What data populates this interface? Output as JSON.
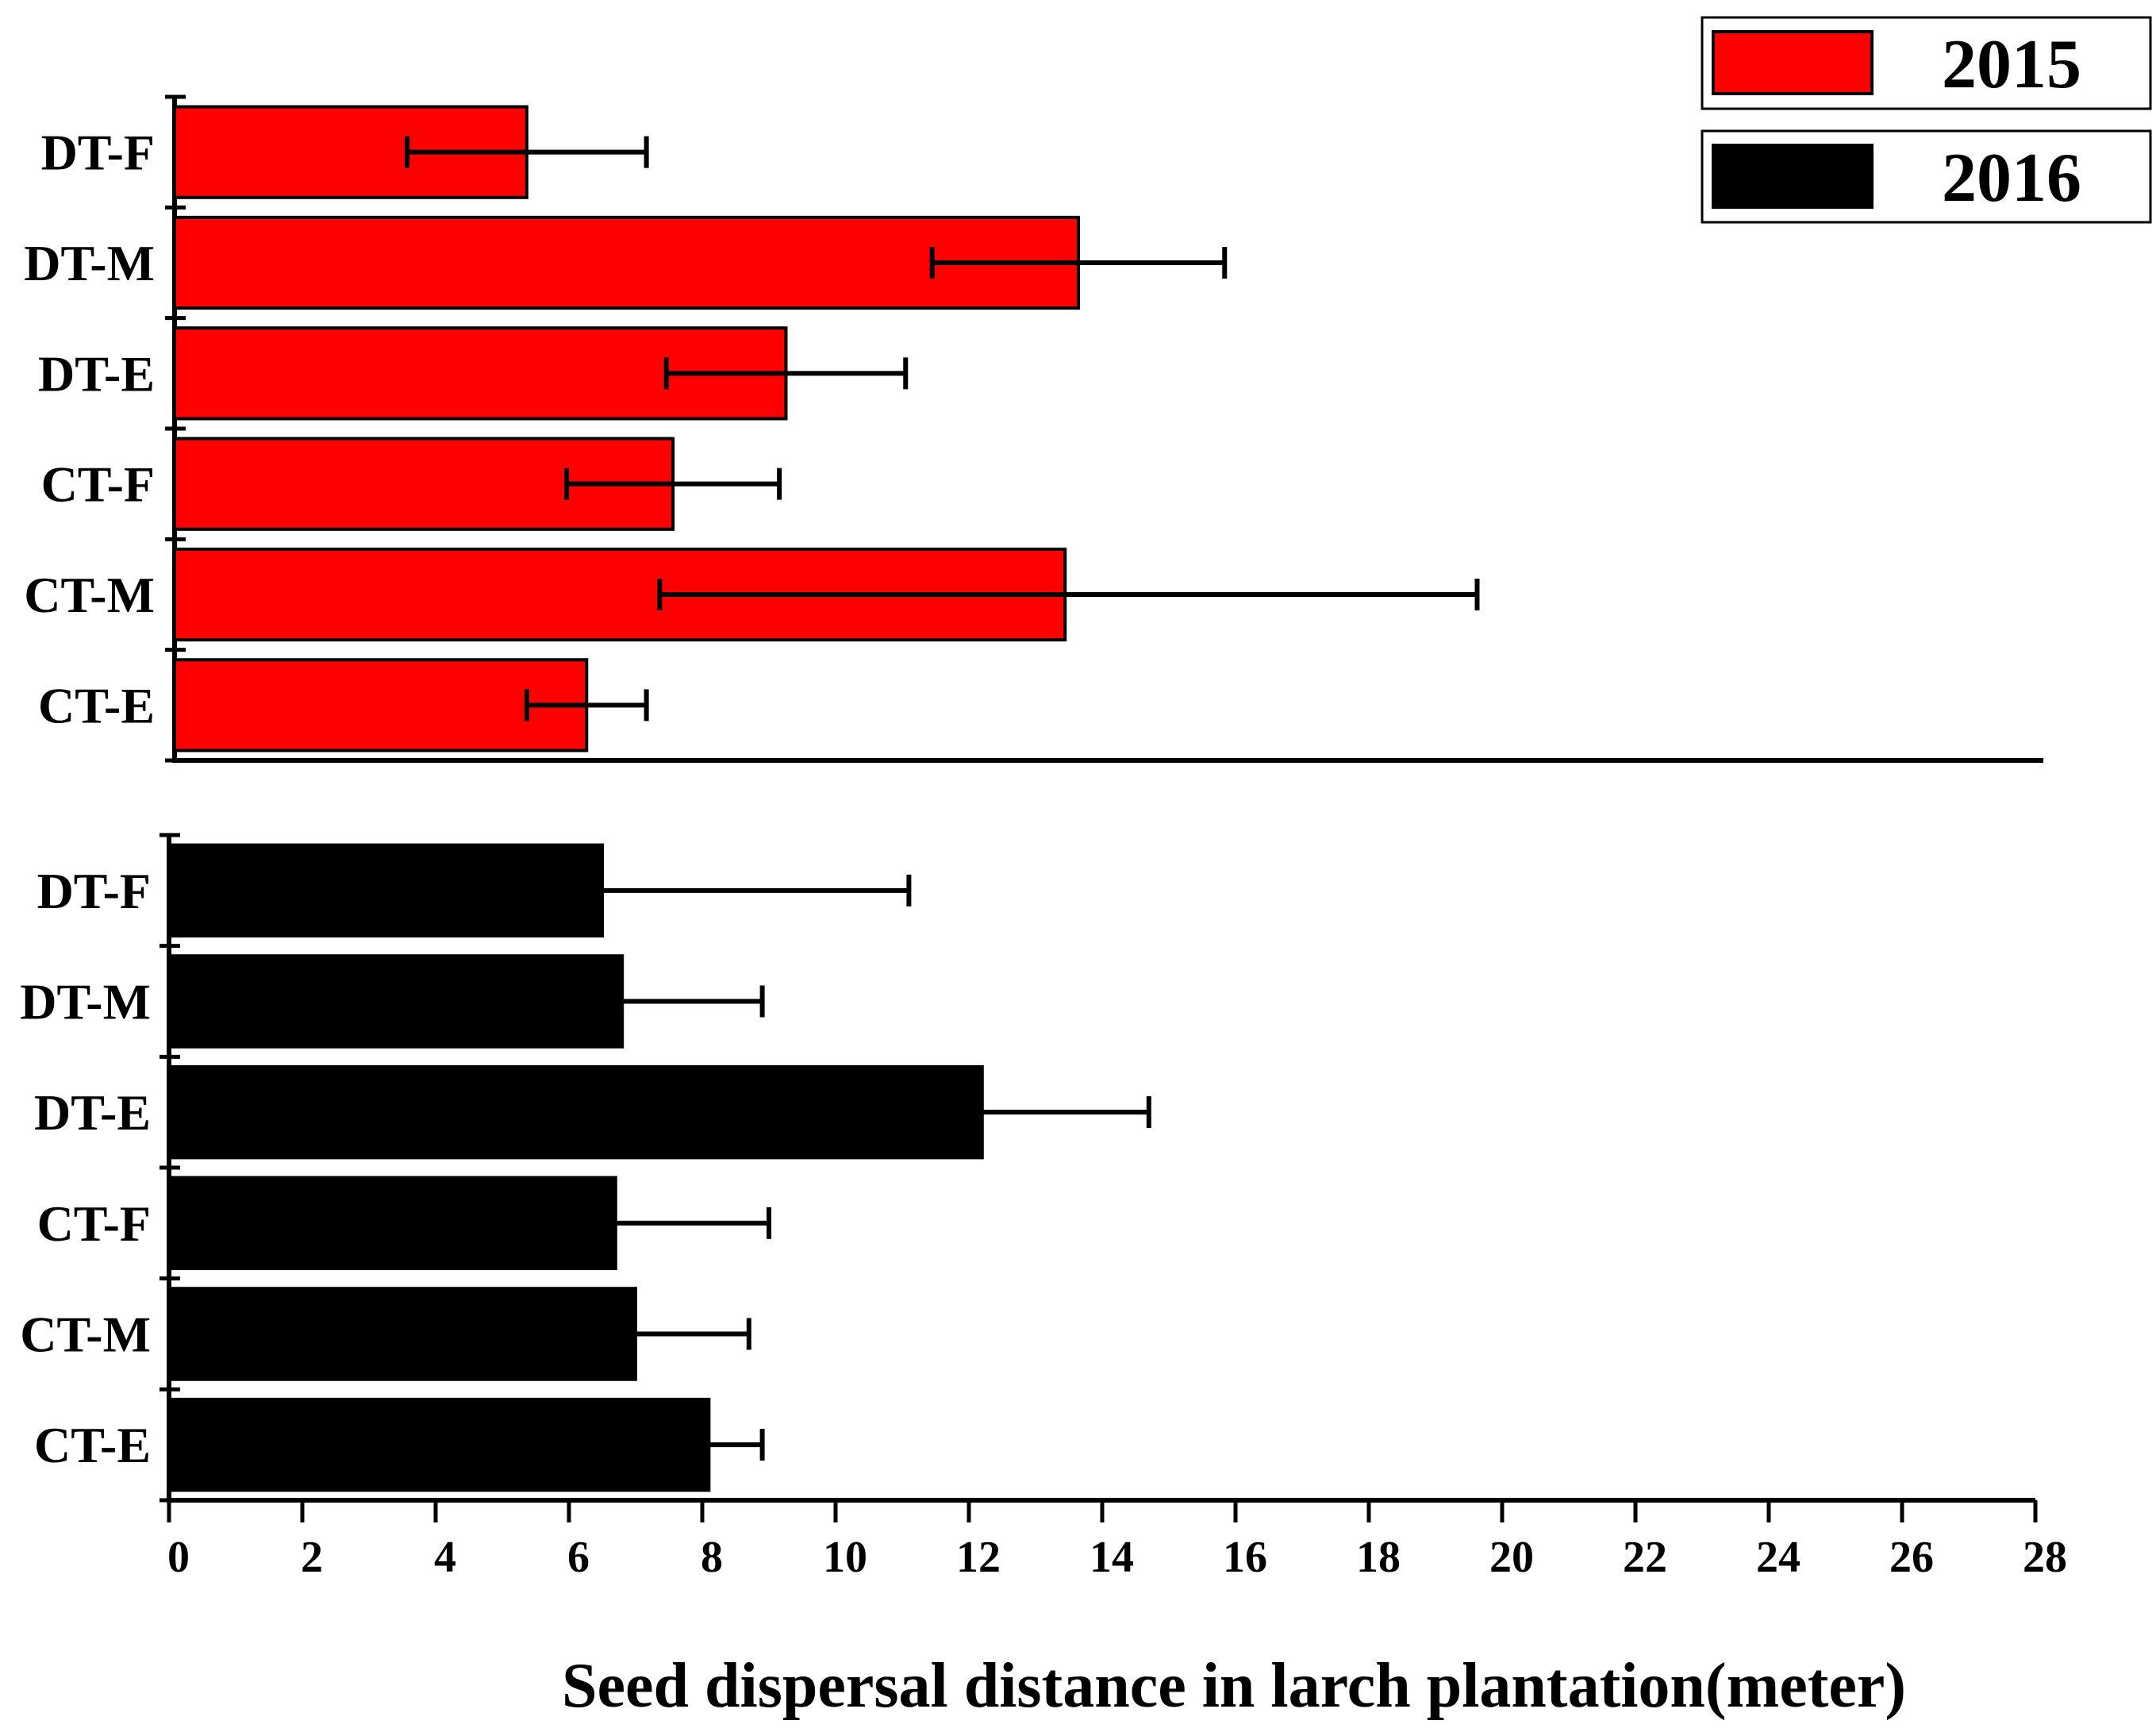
{
  "chart_data": {
    "type": "bar",
    "orientation": "horizontal",
    "xlabel": "Seed dispersal distance in larch plantation(meter)",
    "xlim": [
      0,
      28
    ],
    "x_ticks": [
      "0",
      "2",
      "4",
      "6",
      "8",
      "10",
      "12",
      "14",
      "16",
      "18",
      "20",
      "22",
      "24",
      "26",
      "28"
    ],
    "legend_position": "top-right",
    "panels": [
      {
        "name": "2015",
        "color": "#ff0000",
        "categories": [
          "DT-F",
          "DT-M",
          "DT-E",
          "CT-F",
          "CT-M",
          "CT-E"
        ],
        "values": [
          5.3,
          13.6,
          9.2,
          7.5,
          13.4,
          6.2
        ],
        "error_low": [
          3.5,
          11.4,
          7.4,
          5.9,
          7.3,
          5.3
        ],
        "error_high": [
          7.1,
          15.8,
          11.0,
          9.1,
          19.6,
          7.1
        ]
      },
      {
        "name": "2016",
        "color": "#000000",
        "categories": [
          "DT-F",
          "DT-M",
          "DT-E",
          "CT-F",
          "CT-M",
          "CT-E"
        ],
        "values": [
          6.5,
          6.8,
          12.2,
          6.7,
          7.0,
          8.1
        ],
        "error_low": [
          6.5,
          6.8,
          12.2,
          6.7,
          7.0,
          8.1
        ],
        "error_high": [
          11.1,
          8.9,
          14.7,
          9.0,
          8.7,
          8.9
        ]
      }
    ],
    "legend": [
      {
        "label": "2015",
        "color": "#ff0000"
      },
      {
        "label": "2016",
        "color": "#000000"
      }
    ]
  }
}
